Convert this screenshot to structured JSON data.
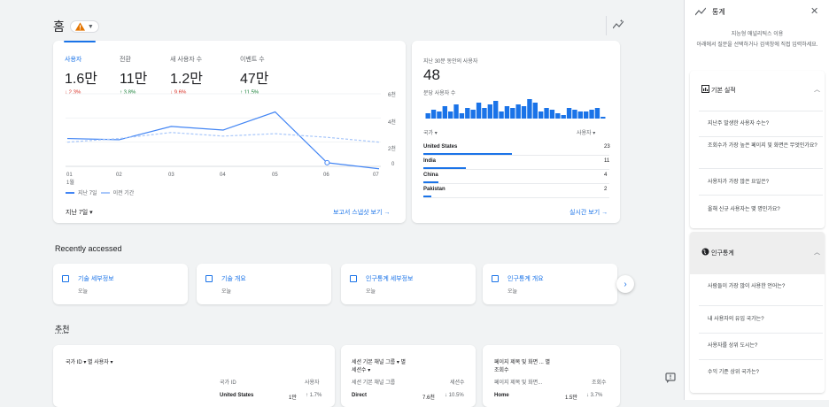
{
  "header": {
    "title": "홈",
    "insights_icon": "insights-icon"
  },
  "metrics": [
    {
      "label": "사용자",
      "value": "1.6만",
      "delta": "↓ 2.3%",
      "dir": "down",
      "active": true
    },
    {
      "label": "전환",
      "value": "11만",
      "delta": "↑ 3.8%",
      "dir": "up"
    },
    {
      "label": "새 사용자 수",
      "value": "1.2만",
      "delta": "↓ 9.6%",
      "dir": "down"
    },
    {
      "label": "이벤트 수",
      "value": "47만",
      "delta": "↑ 11.5%",
      "dir": "up"
    }
  ],
  "main_chart": {
    "y_ticks": [
      "6천",
      "4천",
      "2천",
      "0"
    ],
    "x_ticks": [
      "01",
      "02",
      "03",
      "04",
      "05",
      "06",
      "07"
    ],
    "x_sub": "1월",
    "legend": {
      "current": "지난 7일",
      "previous": "이전 기간"
    },
    "date_range": "지난 7일",
    "link": "보고서 스냅샷 보기"
  },
  "chart_data": {
    "type": "line",
    "x": [
      "01",
      "02",
      "03",
      "04",
      "05",
      "06",
      "07"
    ],
    "ylim": [
      0,
      6000
    ],
    "series": [
      {
        "name": "지난 7일",
        "values": [
          2300,
          2200,
          3300,
          3000,
          4500,
          300,
          -200
        ]
      },
      {
        "name": "이전 기간",
        "values": [
          2000,
          2300,
          2800,
          2500,
          2700,
          2400,
          2000
        ]
      }
    ]
  },
  "realtime": {
    "title": "지난 30분 동안의 사용자",
    "value": "48",
    "sub": "분당 사용자 수",
    "bars": [
      3,
      5,
      4,
      7,
      4,
      8,
      3,
      6,
      5,
      9,
      6,
      8,
      10,
      4,
      7,
      6,
      8,
      7,
      11,
      9,
      4,
      6,
      5,
      3,
      2,
      6,
      5,
      4,
      4,
      5,
      6,
      1
    ],
    "col_country": "국가 ▾",
    "col_users": "사용자 ▾",
    "rows": [
      {
        "name": "United States",
        "value": "23",
        "pct": 1.0
      },
      {
        "name": "India",
        "value": "11",
        "pct": 0.48
      },
      {
        "name": "China",
        "value": "4",
        "pct": 0.17
      },
      {
        "name": "Pakistan",
        "value": "2",
        "pct": 0.09
      }
    ],
    "link": "실시간 보기"
  },
  "recent": {
    "title": "Recently accessed",
    "items": [
      {
        "title": "기술 세부정보",
        "sub": "오늘"
      },
      {
        "title": "기술 개요",
        "sub": "오늘"
      },
      {
        "title": "인구통계 세부정보",
        "sub": "오늘"
      },
      {
        "title": "인구통계 개요",
        "sub": "오늘"
      }
    ]
  },
  "recommend": {
    "title": "추천",
    "card1": {
      "selector": "국가 ID ▾ 별 사용자 ▾",
      "col1": "국가 ID",
      "col2": "사용자",
      "row": "United States",
      "val": "1만",
      "delta": "↑ 1.7%"
    },
    "card2": {
      "selector": "세션 기본 채널 그룹 ▾ 별",
      "selector2": "세션수 ▾",
      "col1": "세션 기본 채널 그룹",
      "col2": "세션수",
      "row": "Direct",
      "val": "7.6천",
      "delta": "↓ 10.5%"
    },
    "card3": {
      "selector": "페이지 제목 및 화면 ... 별",
      "selector2": "조회수",
      "col1": "페이지 제목 및 화면...",
      "col2": "조회수",
      "row": "Home",
      "val": "1.5만",
      "delta": "↓ 3.7%"
    }
  },
  "panel": {
    "title": "통계",
    "subtitle": "지능형 애널리틱스 이용",
    "desc": "아래에서 질문을 선택하거나 검색창에 직접 입력하세요.",
    "section1": {
      "title": "기본 실적",
      "questions": [
        "지난주 발생한 사용자 수는?",
        "조회수가 가장 높은 페이지 및 화면은 무엇인가요?",
        "사용자가 가장 많은 요일은?",
        "올해 신규 사용자는 몇 명인가요?"
      ]
    },
    "section2": {
      "title": "인구통계",
      "questions": [
        "사람들이 가장 많이 사용한 언어는?",
        "내 사용자의 유입 국가는?",
        "사용자를 상위 도시는?",
        "수익 기준 상위 국가는?"
      ]
    }
  }
}
